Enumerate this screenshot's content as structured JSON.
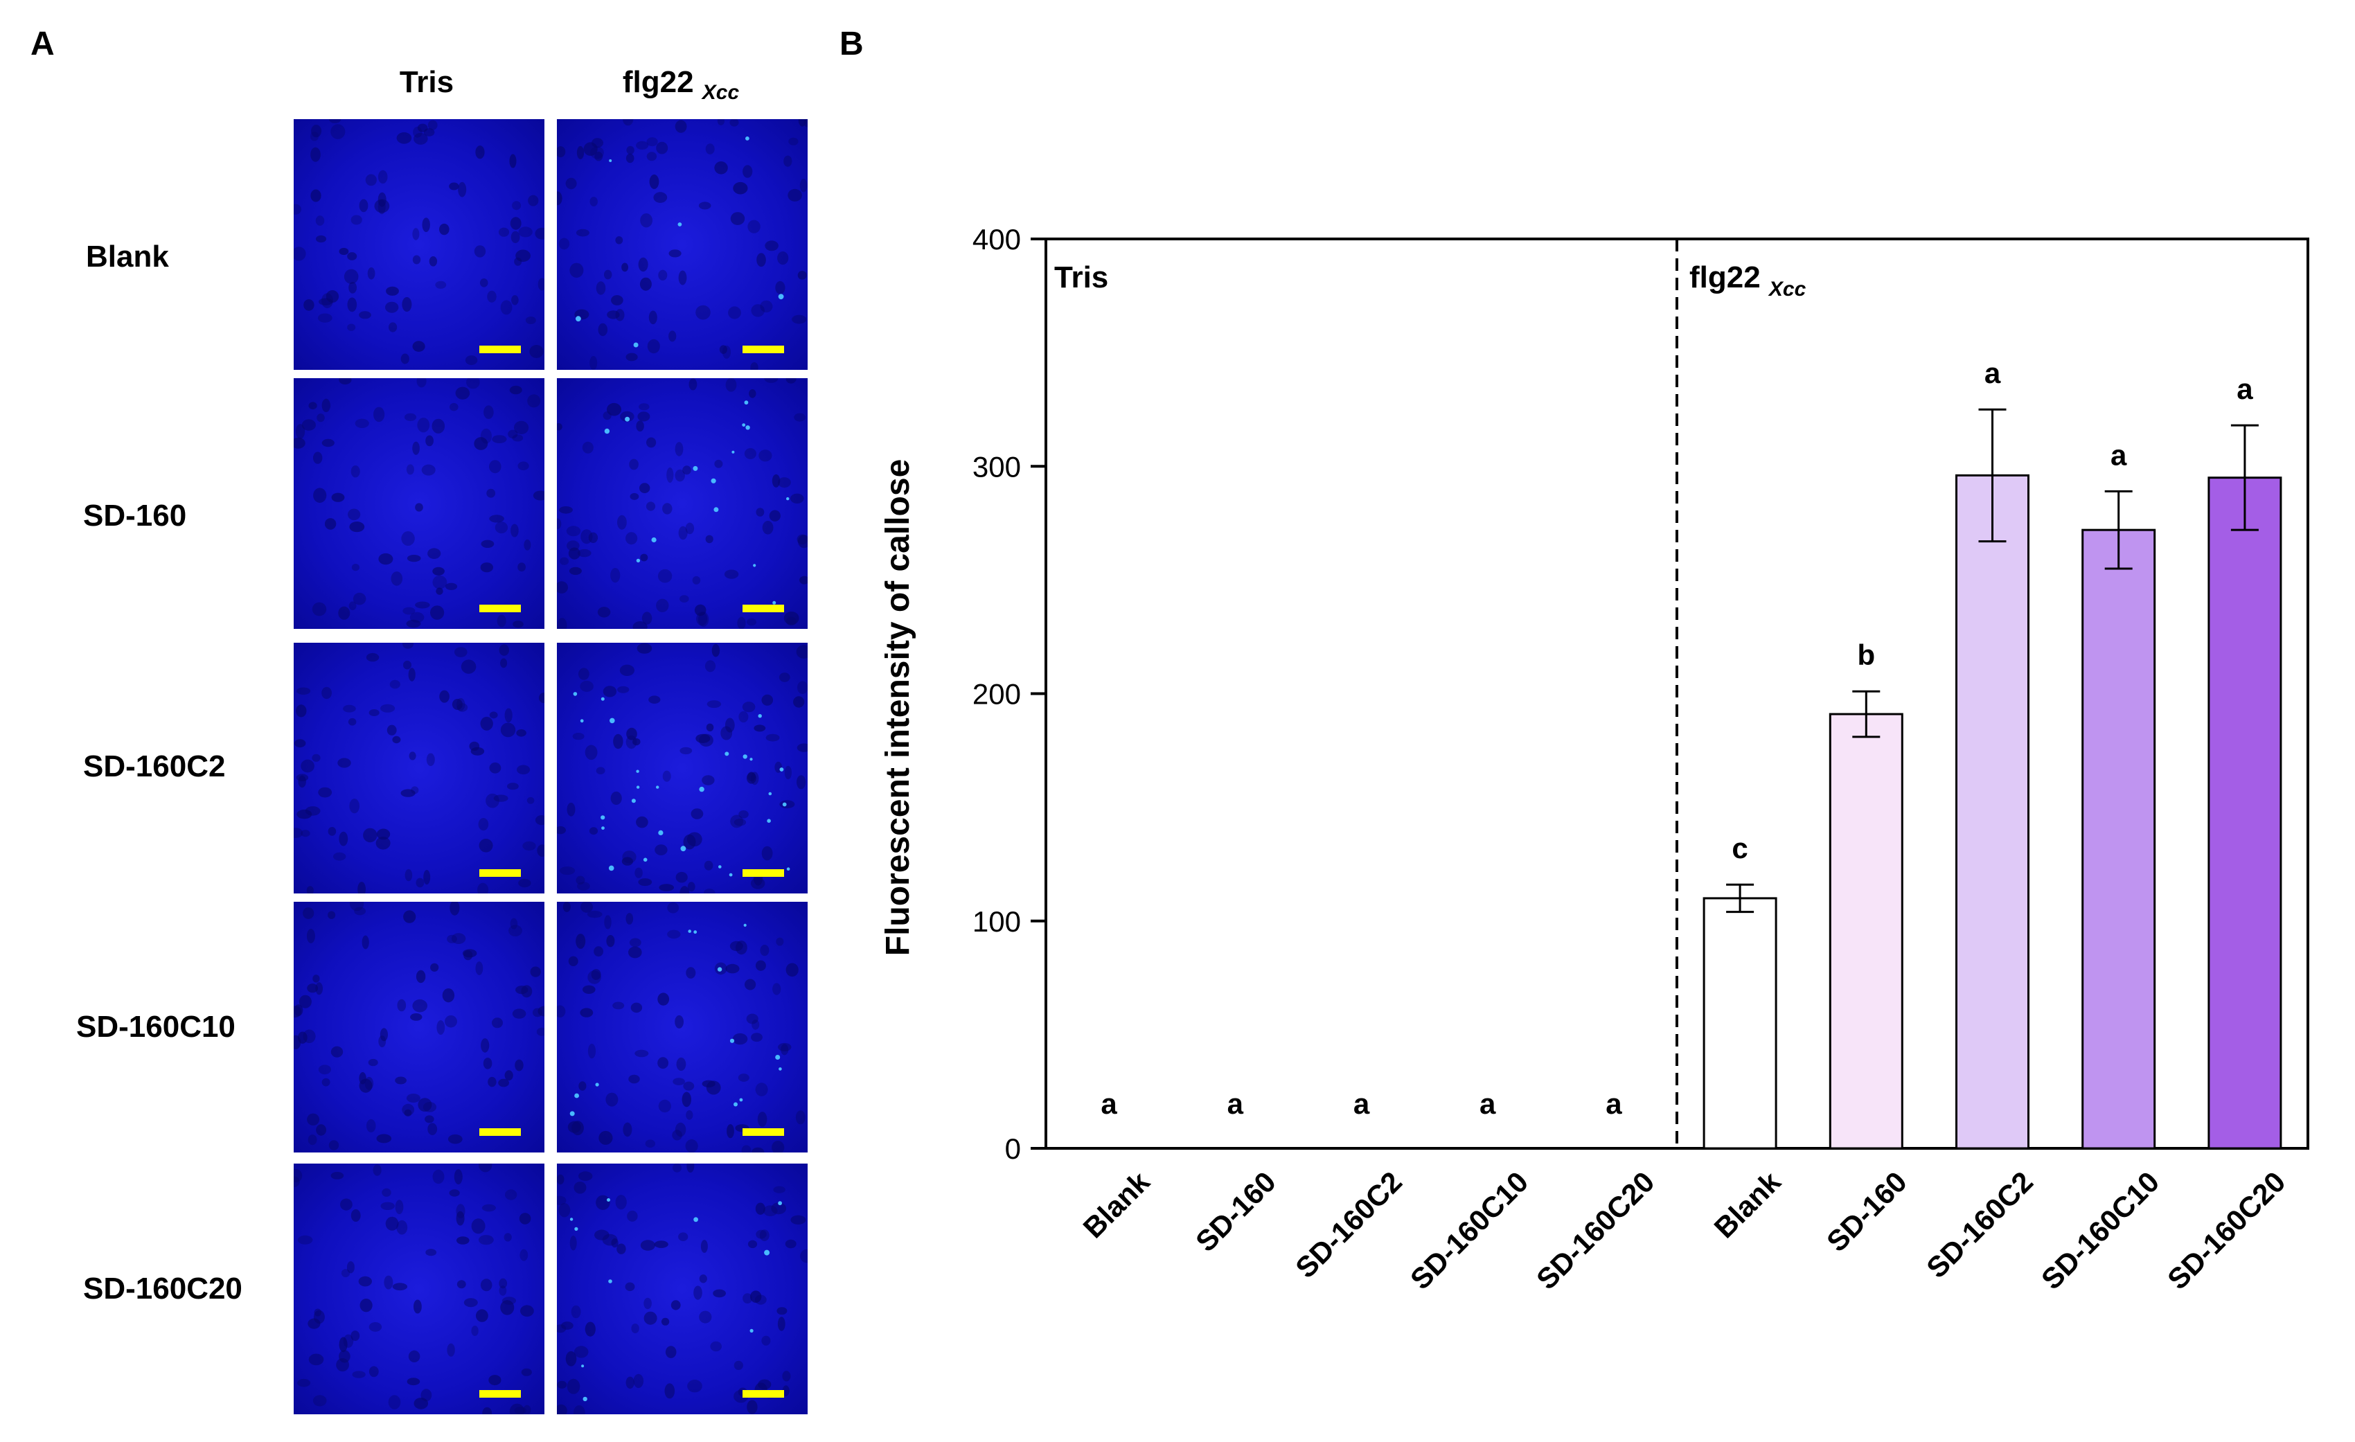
{
  "panel_a": {
    "letter": "A",
    "columns": [
      {
        "title": "Tris",
        "subscript": ""
      },
      {
        "title": "flg22 ",
        "subscript": "Xcc"
      }
    ],
    "rows": [
      "Blank",
      "SD-160",
      "SD-160C2",
      "SD-160C10",
      "SD-160C20"
    ],
    "image_color": "#0f0fbe",
    "scale_bar_color": "#ffff00"
  },
  "panel_b": {
    "letter": "B"
  },
  "chart_data": {
    "type": "bar",
    "categories": [
      "Blank",
      "SD-160",
      "SD-160C2",
      "SD-160C10",
      "SD-160C20",
      "Blank",
      "SD-160",
      "SD-160C2",
      "SD-160C10",
      "SD-160C20"
    ],
    "groups": [
      {
        "label": "Tris",
        "subscript": "",
        "categories": [
          0,
          1,
          2,
          3,
          4
        ]
      },
      {
        "label": "flg22 ",
        "subscript": "Xcc",
        "categories": [
          5,
          6,
          7,
          8,
          9
        ]
      }
    ],
    "values": [
      0,
      0,
      0,
      0,
      0,
      110,
      191,
      296,
      272,
      295
    ],
    "errors": [
      0,
      0,
      0,
      0,
      0,
      6,
      10,
      29,
      17,
      23
    ],
    "significance_letters": [
      "a",
      "a",
      "a",
      "a",
      "a",
      "c",
      "b",
      "a",
      "a",
      "a"
    ],
    "bar_colors": [
      "#ffffff",
      "#ffffff",
      "#ffffff",
      "#ffffff",
      "#ffffff",
      "#ffffff",
      "#f7e4f9",
      "#dfc9f7",
      "#bf94f0",
      "#a45ee6"
    ],
    "ylabel": "Fluorescent intensity of callose",
    "xlabel": "",
    "ylim": [
      0,
      400
    ],
    "yticks": [
      0,
      100,
      200,
      300,
      400
    ],
    "grid": false
  }
}
